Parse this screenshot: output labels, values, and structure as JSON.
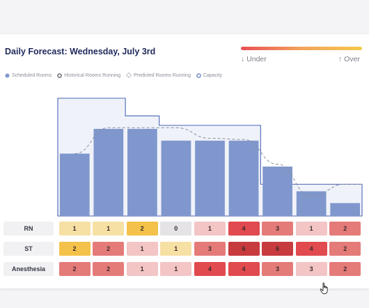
{
  "header": {
    "title": "Daily Forecast: Wednesday, July 3rd",
    "scale": {
      "under_label": "↓ Under",
      "over_label": "↑ Over",
      "gradient": [
        "#e94e55",
        "#f3a35c",
        "#f5c84b"
      ]
    }
  },
  "legend": {
    "items": [
      {
        "label": "Scheduled Rooms",
        "icon": "filled-circle-icon"
      },
      {
        "label": "Historical Rooms Running",
        "icon": "outline-circle-icon"
      },
      {
        "label": "Predicted Rooms Running",
        "icon": "dashed-diamond-icon"
      },
      {
        "label": "Capacity",
        "icon": "outline-circle-icon"
      }
    ]
  },
  "chart_data": {
    "type": "bar",
    "title": "",
    "xlabel": "",
    "ylabel": "",
    "categories": [
      "",
      "",
      "",
      "",
      "",
      "",
      "",
      "",
      ""
    ],
    "ylim": [
      0,
      10
    ],
    "series": [
      {
        "name": "Scheduled Rooms",
        "values": [
          5.3,
          7.4,
          7.4,
          6.4,
          6.4,
          6.4,
          4.2,
          2.1,
          1.1
        ]
      },
      {
        "name": "Predicted Rooms Running",
        "values": [
          5.3,
          7.5,
          7.5,
          7.5,
          6.6,
          6.5,
          4.4,
          1.7,
          2.7
        ]
      },
      {
        "name": "Capacity",
        "values": [
          10,
          10,
          8.5,
          7.7,
          7.7,
          7.7,
          2.7,
          2.7,
          2.7
        ]
      }
    ],
    "grid": false,
    "colors": {
      "bar": "#7f97cc",
      "capacity_line": "#4a66b4",
      "capacity_fill": "#f0f2fa",
      "predicted_line": "#8a8f9c"
    }
  },
  "grid_table": {
    "rows": [
      {
        "label": "RN",
        "values": [
          "1",
          "1",
          "2",
          "0",
          "1",
          "4",
          "3",
          "1",
          "2"
        ],
        "colors": [
          "#f6e0a4",
          "#f6e0a4",
          "#f4c24a",
          "#e5e3e6",
          "#f3c5c5",
          "#e14a4e",
          "#e47b78",
          "#f3c5c5",
          "#e47b78"
        ]
      },
      {
        "label": "ST",
        "values": [
          "2",
          "2",
          "1",
          "1",
          "3",
          "6",
          "6",
          "4",
          "2"
        ],
        "colors": [
          "#f4c24a",
          "#e47b78",
          "#f3c5c5",
          "#f6e0a4",
          "#e47b78",
          "#c73a3e",
          "#c73a3e",
          "#e14a4e",
          "#e47b78"
        ]
      },
      {
        "label": "Anesthesia",
        "values": [
          "2",
          "2",
          "1",
          "1",
          "4",
          "4",
          "3",
          "3",
          "2"
        ],
        "colors": [
          "#e47b78",
          "#e47b78",
          "#f3c5c5",
          "#f3c5c5",
          "#e14a4e",
          "#e14a4e",
          "#e47b78",
          "#f3c5c5",
          "#e47b78"
        ]
      }
    ]
  }
}
